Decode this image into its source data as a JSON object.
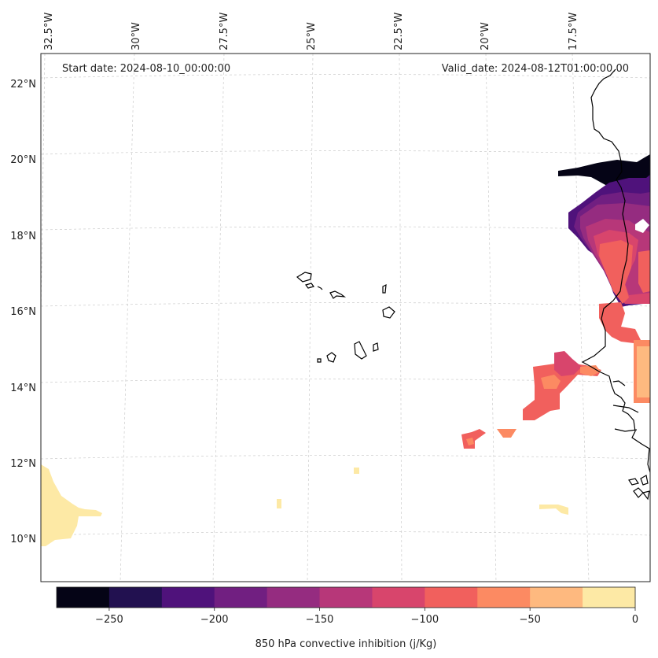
{
  "map": {
    "start_date_label": "Start date: 2024-08-10_00:00:00",
    "valid_date_label": "Valid_date: 2024-08-12T01:00:00.00",
    "lon_labels": [
      "32.5°W",
      "30°W",
      "27.5°W",
      "25°W",
      "22.5°W",
      "20°W",
      "17.5°W"
    ],
    "lat_labels": [
      "22°N",
      "20°N",
      "18°N",
      "16°N",
      "14°N",
      "12°N",
      "10°N"
    ]
  },
  "colorbar": {
    "title": "850 hPa convective inhibition (j/Kg)",
    "tick_labels": [
      "−250",
      "−200",
      "−150",
      "−100",
      "−50",
      "0"
    ],
    "levels": [
      -275,
      -250,
      -225,
      -200,
      -175,
      -150,
      -125,
      -100,
      -75,
      -50,
      -25,
      0
    ],
    "colors": [
      "#050416",
      "#221150",
      "#4f127b",
      "#711f81",
      "#952c80",
      "#b73779",
      "#d8456c",
      "#f1605d",
      "#fc8a62",
      "#feb97f",
      "#fde9a5"
    ]
  },
  "chart_data": {
    "type": "heatmap",
    "variable": "850 hPa convective inhibition",
    "units": "j/Kg",
    "colorbar_range": [
      -275,
      0
    ],
    "lon_range": [
      "32.5°W",
      "15.5°W"
    ],
    "lat_range": [
      "9°N",
      "22.5°N"
    ]
  }
}
